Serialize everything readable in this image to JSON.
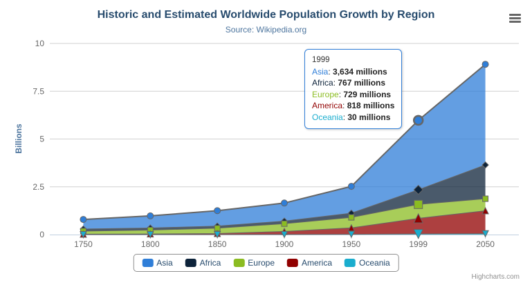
{
  "header": {
    "title": "Historic and Estimated Worldwide Population Growth by Region",
    "subtitle": "Source: Wikipedia.org"
  },
  "chart_data": {
    "type": "area",
    "stacking": "normal",
    "title": "Historic and Estimated Worldwide Population Growth by Region",
    "subtitle": "Source: Wikipedia.org",
    "categories": [
      "1750",
      "1800",
      "1850",
      "1900",
      "1950",
      "1999",
      "2050"
    ],
    "series": [
      {
        "name": "Asia",
        "color": "#2f7ed8",
        "marker": "circle",
        "values_millions": [
          502,
          635,
          809,
          947,
          1402,
          3634,
          5268
        ]
      },
      {
        "name": "Africa",
        "color": "#0d233a",
        "marker": "diamond",
        "values_millions": [
          106,
          107,
          111,
          133,
          221,
          767,
          1766
        ]
      },
      {
        "name": "Europe",
        "color": "#8bbc21",
        "marker": "square",
        "values_millions": [
          163,
          203,
          276,
          408,
          547,
          729,
          628
        ]
      },
      {
        "name": "America",
        "color": "#910000",
        "marker": "triangle",
        "values_millions": [
          18,
          31,
          54,
          156,
          339,
          818,
          1201
        ]
      },
      {
        "name": "Oceania",
        "color": "#1aadce",
        "marker": "triangle-down",
        "values_millions": [
          2,
          2,
          2,
          6,
          13,
          30,
          46
        ]
      }
    ],
    "stack_order_bottom_to_top": [
      "Oceania",
      "America",
      "Europe",
      "Africa",
      "Asia"
    ],
    "xlabel": "",
    "ylabel": "Billions",
    "ylim": [
      0,
      10
    ],
    "yticks": [
      0,
      2.5,
      5,
      7.5,
      10
    ],
    "grid": true,
    "grid_color": "#d0d0d0",
    "axis_line_color": "#c0d0e0",
    "axis_label_color": "#666666",
    "line_color": "#666666",
    "fill_opacity": 0.75,
    "legend_position": "bottom",
    "hover": {
      "category_index": 5,
      "hovered_series": "Asia"
    }
  },
  "tooltip": {
    "header": "1999",
    "rows": [
      {
        "name": "Asia",
        "color": "#2f7ed8",
        "value": "3,634 millions"
      },
      {
        "name": "Africa",
        "color": "#0d233a",
        "value": "767 millions"
      },
      {
        "name": "Europe",
        "color": "#8bbc21",
        "value": "729 millions"
      },
      {
        "name": "America",
        "color": "#910000",
        "value": "818 millions"
      },
      {
        "name": "Oceania",
        "color": "#1aadce",
        "value": "30 millions"
      }
    ]
  },
  "legend": {
    "items": [
      {
        "label": "Asia",
        "color": "#2f7ed8"
      },
      {
        "label": "Africa",
        "color": "#0d233a"
      },
      {
        "label": "Europe",
        "color": "#8bbc21"
      },
      {
        "label": "America",
        "color": "#910000"
      },
      {
        "label": "Oceania",
        "color": "#1aadce"
      }
    ]
  },
  "credits": {
    "label": "Highcharts.com"
  },
  "icons": {
    "menu": "hamburger-icon"
  }
}
